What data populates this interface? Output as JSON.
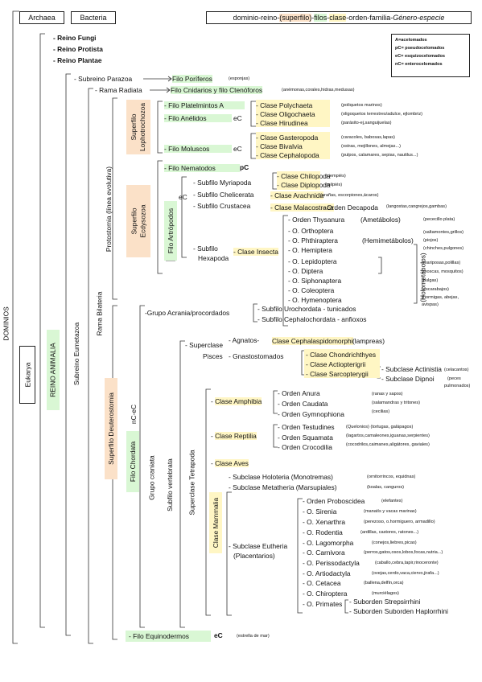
{
  "top": {
    "archaea": "Archaea",
    "bacteria": "Bacteria",
    "hier_prefix": "dominio-reino-",
    "hier_superfilo": "(superfilo)",
    "hier_dash1": "-",
    "hier_filos": "filos",
    "hier_dash2": "-",
    "hier_clase": "clase",
    "hier_rest": "-orden-familia-",
    "hier_genus": "Género-especie"
  },
  "legend": {
    "a": "A=acelomados",
    "pc": "pC= pseudocelomados",
    "ec": "eC= esquizocelomados",
    "nc": "nC= enterocelomados"
  },
  "vertical": {
    "dominios": "DOMINIOS",
    "eukarya": "Eukarya",
    "reino_animalia": "REINO ANIMALIA",
    "subreino_eumetazoa": "Subreino Eumetazoa",
    "rama_bilateria": "Rama Bilateria",
    "protostomia": "Protostomia (línea evolutiva)",
    "superfilo_lopho": "Superfilo Lophotrochozoa",
    "superfilo_ecdy": "Superfilo Ecdysozoa",
    "filo_artropodos": "Filo Artrópodos",
    "holometabolos": "(Holometábolos)",
    "superfilo_deut": "Superfilo Deuterostomia",
    "filo_chordata": "Filo Chordata",
    "nc_ec": "nC-eC",
    "grupo_craniata": "Grupo craniata",
    "subfilo_vertebrata": "Subfilo vertebrata",
    "superclase_tetrapoda": "Superclase Tetrapoda",
    "clase_mammalia": "Clase Mammalia"
  },
  "reinos": [
    "Reino Fungi",
    "Reino Protista",
    "Reino Plantae"
  ],
  "parazoa": {
    "label": "Subreino Parazoa",
    "filo": "Filo Poríferos",
    "note": "(esponjas)"
  },
  "radiata": {
    "label": "Rama Radiata",
    "filo": "Filo Cnidarios y filo Ctenóforos",
    "note": "(anémonas,corales,hidras,medusas)"
  },
  "lopho": {
    "platelmintos": "Filo Platelmintos A",
    "anelidos": "Filo Anélidos",
    "anelidos_ec": "eC",
    "moluscos": "Filo Moluscos",
    "moluscos_ec": "eC",
    "anel_clases": [
      "Clase Polychaeta",
      "Clase Oligochaeta",
      "Clase Hirudinea"
    ],
    "anel_notes": [
      "(poliquetos marinos)",
      "(oligoquetos terrestres/adulce, ejlombriz)",
      "(parásito-ej,sanguijuelas)"
    ],
    "mol_clases": [
      "Clase Gasteropoda",
      "Clase Bivalvia",
      "Clase Cephalopoda"
    ],
    "mol_notes": [
      "(caracoles, babosas,lapas)",
      "(ostras, mejillones, almejas...)",
      "(pulpos, calamares, sepias, nautilus...)"
    ]
  },
  "ecdy": {
    "nematodos": "Filo Nematodos",
    "nematodos_pc": "pC",
    "artro_ec": "eC",
    "myriapoda": "Subfilo Myriapoda",
    "chilopoda": "Clase Chilopoda",
    "diplopoda": "Clase Diplopoda",
    "chelicerata": "Subfilo Chelicerata",
    "arachnida": "Clase Arachnida",
    "crustacea": "Subfilo Crustacea",
    "malacostraca": "Clase Malacostraca",
    "decapoda": "Orden Decapoda",
    "note_chilopoda": "(ciempiés)",
    "note_diplopoda": "(milpiés)",
    "note_arachnida": "(arañas, escorpiones,ácaros)",
    "note_decapoda": "(langostas,cangrejos,gambas)",
    "hexapoda_1": "Subfilo",
    "hexapoda_2": "Hexapoda",
    "insecta": "Clase Insecta",
    "ordenes": [
      "Orden Thysanura",
      "O. Orthoptera",
      "O. Phthiraptera",
      "O. Hemiptera",
      "O. Lepidoptera",
      "O. Diptera",
      "O. Siphonaptera",
      "O. Coleoptera",
      "O. Hymenoptera"
    ],
    "ametabolos": "(Ametábolos)",
    "hemimetabolos": "(Hemimetábolos)",
    "insect_notes": [
      "(pececillo plata)",
      "(saltamontes,grillos)",
      "(piojos)",
      "(chinches,pulgones)",
      "(mariposas,polillas)",
      "(moscas, mosquitos)",
      "(pulgas)",
      "(escarabajos)",
      "(hormigas, abejas,",
      "avispas)"
    ]
  },
  "deut": {
    "acrania": "Grupo Acrania/procordados",
    "urochordata": "Subfilo Urochordata - tunicados",
    "cephalochordata": "Subfilo Cephalochordata - anfioxos",
    "pisces_1": "Superclase",
    "pisces_2": "Pisces",
    "agnatos": "Agnatos-",
    "cephalaspido": "Clase Cephalaspidomorphi",
    "lampreas": "(lampreas)",
    "gnasto": "Gnastostomados",
    "chondri": "Clase Chondrichthyes",
    "actinopt": "Clase Actiopterigrii",
    "sarcopt": "Clase Sarcopterygii",
    "actinistia": "Subclase Actinistia",
    "dipnoi": "Subclase Dipnoi",
    "celacantos": "(celacantos)",
    "peces_pulm_1": "(peces",
    "peces_pulm_2": "pulmonados)",
    "amphibia": "Clase Amphibia",
    "amph_ordenes": [
      "Orden Anura",
      "Orden Caudata",
      "Orden Gymnophiona"
    ],
    "amph_notes": [
      "(ranas y sapos)",
      "(salamandras y tritones)",
      "(cecilias)"
    ],
    "reptilia": "Clase Reptilia",
    "rept_ordenes": [
      "Orden Testudines",
      "Orden Squamata",
      "Orden Crocodilia"
    ],
    "rept_notes": [
      "(Quelonios) (tortugas, galápagos)",
      "(lagartos,camaleones,iguanas,serpientes)",
      "(cocodrilos,caimanes,aligátores, gaviales)"
    ],
    "aves": "Clase Aves",
    "monotremas": "Subclase Holoteria (Monotremas)",
    "note_monotremas": "(ornitorrincos, equidnas)",
    "marsupiales": "Subclase Metatheria (Marsupiales)",
    "note_marsupiales": "(koalas, canguros)",
    "eutheria_1": "Subclase Eutheria",
    "eutheria_2": "(Placentarios)",
    "mam_ordenes": [
      "Orden Proboscidea",
      "O. Sirenia",
      "O. Xenarthra",
      "O. Rodentia",
      "O. Lagomorpha",
      "O. Carnivora",
      "O. Perissodactyla",
      "O. Artiodactyla",
      "O. Cetacea",
      "O. Chiroptera",
      "O. Primates"
    ],
    "mam_notes": [
      "(elefantes)",
      "(manatís y vacas marinas)",
      "(perezoso, o.hormiguero, armadillo)",
      "(ardillas, castores, ratones...)",
      "(conejos,liebres,picas)",
      "(perros,gatos,osos,lobos,focas,nutria...)",
      "(caballo,cebra,tapir,rinoceronte)",
      "(ovejas,cerdo,vaca,ciervo,jirafa...)",
      "(ballena,delfín,orca)",
      "(murciélagos)"
    ],
    "strepsirrhini": "Suborden Strepsirrhini",
    "haplorrhini": "Suborden Suborden Haplorrhini",
    "equinodermos": "Filo Equinodermos",
    "equino_ec": "eC",
    "estrella": "(estrella de mar)"
  }
}
